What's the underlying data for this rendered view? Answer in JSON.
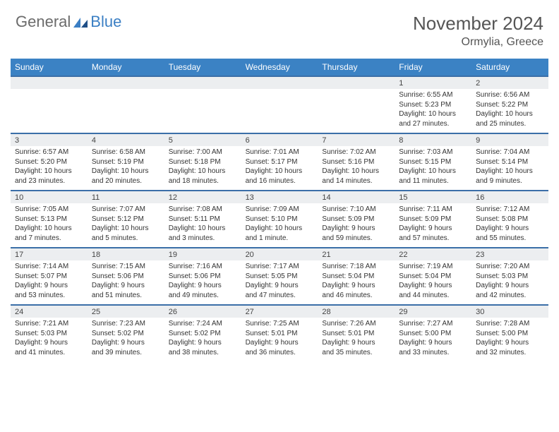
{
  "logo": {
    "text_general": "General",
    "text_blue": "Blue"
  },
  "title": {
    "month": "November 2024",
    "location": "Ormylia, Greece"
  },
  "colors": {
    "header_bg": "#3b82c4",
    "header_text": "#ffffff",
    "week_divider": "#3b6fa8",
    "daynum_bg": "#eceef0",
    "text": "#333333",
    "logo_gray": "#6b6b6b",
    "logo_blue": "#3b7fc4"
  },
  "day_names": [
    "Sunday",
    "Monday",
    "Tuesday",
    "Wednesday",
    "Thursday",
    "Friday",
    "Saturday"
  ],
  "weeks": [
    [
      {
        "num": "",
        "lines": []
      },
      {
        "num": "",
        "lines": []
      },
      {
        "num": "",
        "lines": []
      },
      {
        "num": "",
        "lines": []
      },
      {
        "num": "",
        "lines": []
      },
      {
        "num": "1",
        "lines": [
          "Sunrise: 6:55 AM",
          "Sunset: 5:23 PM",
          "Daylight: 10 hours",
          "and 27 minutes."
        ]
      },
      {
        "num": "2",
        "lines": [
          "Sunrise: 6:56 AM",
          "Sunset: 5:22 PM",
          "Daylight: 10 hours",
          "and 25 minutes."
        ]
      }
    ],
    [
      {
        "num": "3",
        "lines": [
          "Sunrise: 6:57 AM",
          "Sunset: 5:20 PM",
          "Daylight: 10 hours",
          "and 23 minutes."
        ]
      },
      {
        "num": "4",
        "lines": [
          "Sunrise: 6:58 AM",
          "Sunset: 5:19 PM",
          "Daylight: 10 hours",
          "and 20 minutes."
        ]
      },
      {
        "num": "5",
        "lines": [
          "Sunrise: 7:00 AM",
          "Sunset: 5:18 PM",
          "Daylight: 10 hours",
          "and 18 minutes."
        ]
      },
      {
        "num": "6",
        "lines": [
          "Sunrise: 7:01 AM",
          "Sunset: 5:17 PM",
          "Daylight: 10 hours",
          "and 16 minutes."
        ]
      },
      {
        "num": "7",
        "lines": [
          "Sunrise: 7:02 AM",
          "Sunset: 5:16 PM",
          "Daylight: 10 hours",
          "and 14 minutes."
        ]
      },
      {
        "num": "8",
        "lines": [
          "Sunrise: 7:03 AM",
          "Sunset: 5:15 PM",
          "Daylight: 10 hours",
          "and 11 minutes."
        ]
      },
      {
        "num": "9",
        "lines": [
          "Sunrise: 7:04 AM",
          "Sunset: 5:14 PM",
          "Daylight: 10 hours",
          "and 9 minutes."
        ]
      }
    ],
    [
      {
        "num": "10",
        "lines": [
          "Sunrise: 7:05 AM",
          "Sunset: 5:13 PM",
          "Daylight: 10 hours",
          "and 7 minutes."
        ]
      },
      {
        "num": "11",
        "lines": [
          "Sunrise: 7:07 AM",
          "Sunset: 5:12 PM",
          "Daylight: 10 hours",
          "and 5 minutes."
        ]
      },
      {
        "num": "12",
        "lines": [
          "Sunrise: 7:08 AM",
          "Sunset: 5:11 PM",
          "Daylight: 10 hours",
          "and 3 minutes."
        ]
      },
      {
        "num": "13",
        "lines": [
          "Sunrise: 7:09 AM",
          "Sunset: 5:10 PM",
          "Daylight: 10 hours",
          "and 1 minute."
        ]
      },
      {
        "num": "14",
        "lines": [
          "Sunrise: 7:10 AM",
          "Sunset: 5:09 PM",
          "Daylight: 9 hours",
          "and 59 minutes."
        ]
      },
      {
        "num": "15",
        "lines": [
          "Sunrise: 7:11 AM",
          "Sunset: 5:09 PM",
          "Daylight: 9 hours",
          "and 57 minutes."
        ]
      },
      {
        "num": "16",
        "lines": [
          "Sunrise: 7:12 AM",
          "Sunset: 5:08 PM",
          "Daylight: 9 hours",
          "and 55 minutes."
        ]
      }
    ],
    [
      {
        "num": "17",
        "lines": [
          "Sunrise: 7:14 AM",
          "Sunset: 5:07 PM",
          "Daylight: 9 hours",
          "and 53 minutes."
        ]
      },
      {
        "num": "18",
        "lines": [
          "Sunrise: 7:15 AM",
          "Sunset: 5:06 PM",
          "Daylight: 9 hours",
          "and 51 minutes."
        ]
      },
      {
        "num": "19",
        "lines": [
          "Sunrise: 7:16 AM",
          "Sunset: 5:06 PM",
          "Daylight: 9 hours",
          "and 49 minutes."
        ]
      },
      {
        "num": "20",
        "lines": [
          "Sunrise: 7:17 AM",
          "Sunset: 5:05 PM",
          "Daylight: 9 hours",
          "and 47 minutes."
        ]
      },
      {
        "num": "21",
        "lines": [
          "Sunrise: 7:18 AM",
          "Sunset: 5:04 PM",
          "Daylight: 9 hours",
          "and 46 minutes."
        ]
      },
      {
        "num": "22",
        "lines": [
          "Sunrise: 7:19 AM",
          "Sunset: 5:04 PM",
          "Daylight: 9 hours",
          "and 44 minutes."
        ]
      },
      {
        "num": "23",
        "lines": [
          "Sunrise: 7:20 AM",
          "Sunset: 5:03 PM",
          "Daylight: 9 hours",
          "and 42 minutes."
        ]
      }
    ],
    [
      {
        "num": "24",
        "lines": [
          "Sunrise: 7:21 AM",
          "Sunset: 5:03 PM",
          "Daylight: 9 hours",
          "and 41 minutes."
        ]
      },
      {
        "num": "25",
        "lines": [
          "Sunrise: 7:23 AM",
          "Sunset: 5:02 PM",
          "Daylight: 9 hours",
          "and 39 minutes."
        ]
      },
      {
        "num": "26",
        "lines": [
          "Sunrise: 7:24 AM",
          "Sunset: 5:02 PM",
          "Daylight: 9 hours",
          "and 38 minutes."
        ]
      },
      {
        "num": "27",
        "lines": [
          "Sunrise: 7:25 AM",
          "Sunset: 5:01 PM",
          "Daylight: 9 hours",
          "and 36 minutes."
        ]
      },
      {
        "num": "28",
        "lines": [
          "Sunrise: 7:26 AM",
          "Sunset: 5:01 PM",
          "Daylight: 9 hours",
          "and 35 minutes."
        ]
      },
      {
        "num": "29",
        "lines": [
          "Sunrise: 7:27 AM",
          "Sunset: 5:00 PM",
          "Daylight: 9 hours",
          "and 33 minutes."
        ]
      },
      {
        "num": "30",
        "lines": [
          "Sunrise: 7:28 AM",
          "Sunset: 5:00 PM",
          "Daylight: 9 hours",
          "and 32 minutes."
        ]
      }
    ]
  ]
}
